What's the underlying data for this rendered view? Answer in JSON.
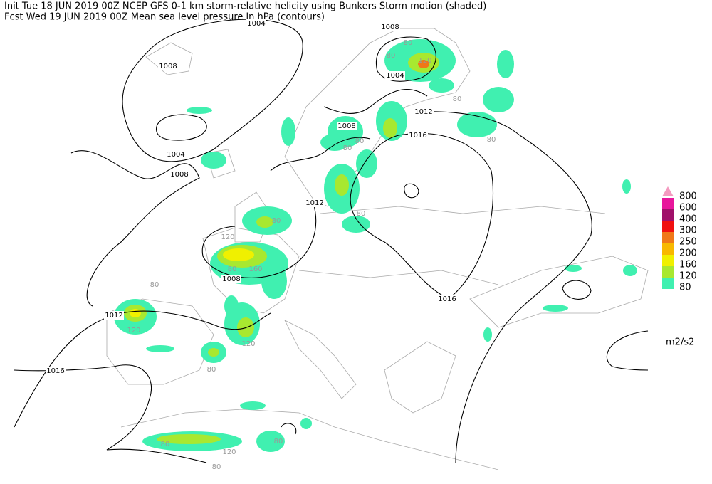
{
  "header": {
    "line1": "Init  Tue 18 JUN 2019 00Z  NCEP GFS 0-1 km storm-relative helicity using Bunkers Storm motion (shaded)",
    "line2": "Fcst Wed 19 JUN 2019 00Z  Mean sea level pressure in hPa (contours)"
  },
  "contour_labels": [
    1004,
    1008,
    1008,
    1004,
    1012,
    1008,
    1016,
    1004,
    1008,
    1012,
    1008,
    1016,
    1012,
    1016
  ],
  "shade_labels": [
    80,
    80,
    120,
    80,
    80,
    80,
    80,
    80,
    80,
    120,
    80,
    160,
    80,
    120,
    120,
    80,
    80,
    120,
    80,
    80
  ],
  "legend": {
    "levels": [
      {
        "value": 800,
        "color": "#f49ac0"
      },
      {
        "value": 600,
        "color": "#e8169c"
      },
      {
        "value": 400,
        "color": "#a0106a"
      },
      {
        "value": 300,
        "color": "#f01010"
      },
      {
        "value": 250,
        "color": "#f07818"
      },
      {
        "value": 200,
        "color": "#f8b800"
      },
      {
        "value": 160,
        "color": "#f0f000"
      },
      {
        "value": 120,
        "color": "#a8e830"
      },
      {
        "value": 80,
        "color": "#40f0b0"
      }
    ],
    "unit": "m2/s2"
  }
}
